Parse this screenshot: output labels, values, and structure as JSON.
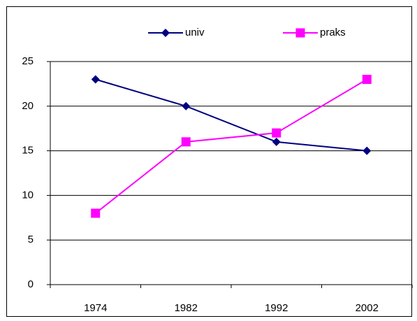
{
  "chart_data": {
    "type": "line",
    "categories": [
      "1974",
      "1982",
      "1992",
      "2002"
    ],
    "series": [
      {
        "name": "univ",
        "color": "#000080",
        "marker": "diamond",
        "values": [
          23,
          20,
          16,
          15
        ]
      },
      {
        "name": "praks",
        "color": "#ff00ff",
        "marker": "square",
        "values": [
          8,
          16,
          17,
          23
        ]
      }
    ],
    "ylim": [
      0,
      25
    ],
    "yticks": [
      0,
      5,
      10,
      15,
      20,
      25
    ],
    "grid": true,
    "legend": "top"
  }
}
